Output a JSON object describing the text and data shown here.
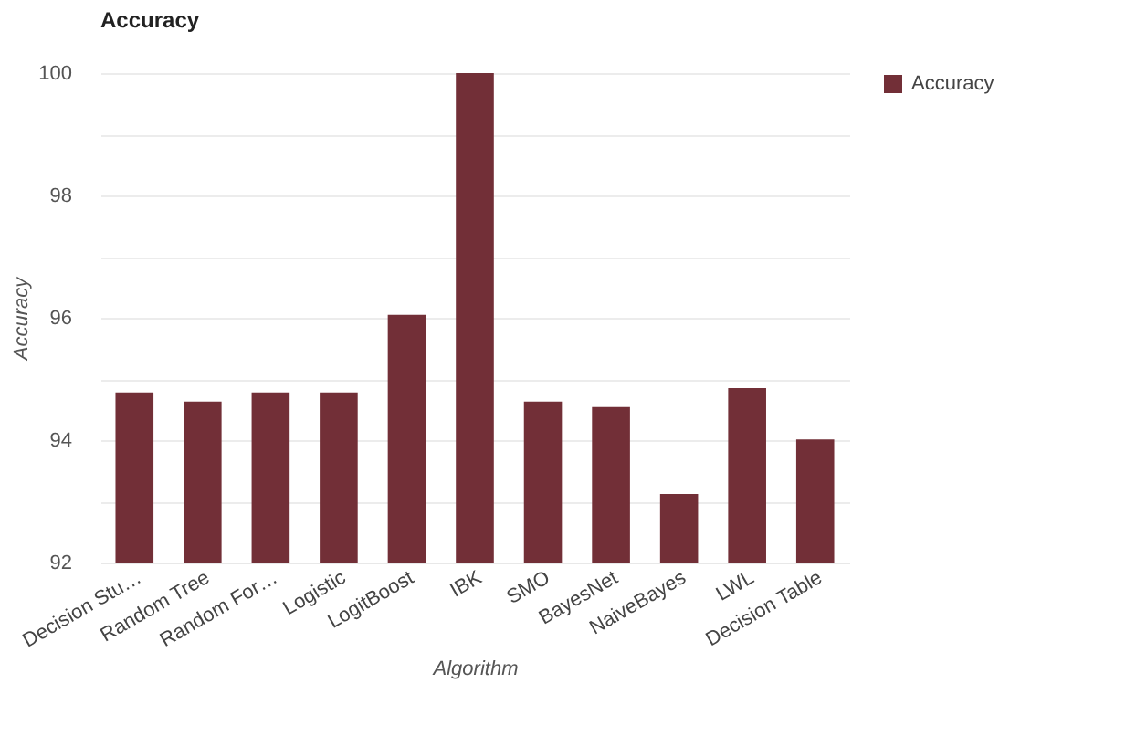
{
  "chart_data": {
    "type": "bar",
    "title": "Accuracy",
    "xlabel": "Algorithm",
    "ylabel": "Accuracy",
    "categories": [
      "Decision Stu…",
      "Random Tree",
      "Random For…",
      "Logistic",
      "LogitBoost",
      "IBK",
      "SMO",
      "BayesNet",
      "NaiveBayes",
      "LWL",
      "Decision Table"
    ],
    "series": [
      {
        "name": "Accuracy",
        "color": "#722f37",
        "values": [
          94.78,
          94.63,
          94.78,
          94.78,
          96.05,
          100,
          94.63,
          94.54,
          93.12,
          94.85,
          94.01
        ]
      }
    ],
    "ylim": [
      92,
      100
    ],
    "yticks": [
      92,
      {
        "value": 93,
        "label": null
      },
      94,
      {
        "value": 95,
        "label": null
      },
      96,
      {
        "value": 97,
        "label": null
      },
      98,
      {
        "value": 99,
        "label": null
      },
      100
    ],
    "grid": "y",
    "legend": "top right"
  }
}
